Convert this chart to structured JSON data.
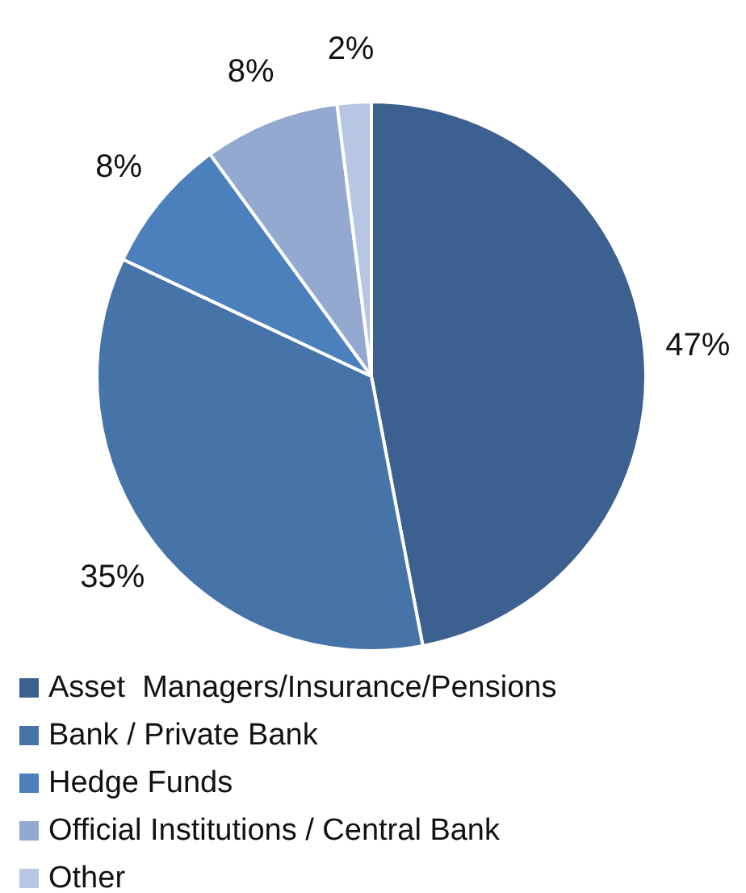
{
  "chart_data": {
    "type": "pie",
    "categories": [
      "Asset  Managers/Insurance/Pensions",
      "Bank / Private Bank",
      "Hedge Funds",
      "Official Institutions / Central Bank",
      "Other"
    ],
    "values": [
      47,
      35,
      8,
      8,
      2
    ],
    "colors": [
      "#3c6090",
      "#4674a8",
      "#4c80bd",
      "#93a9d0",
      "#b7c7e3"
    ],
    "value_labels": [
      "47%",
      "35%",
      "8%",
      "8%",
      "2%"
    ],
    "legend": "bottom"
  }
}
